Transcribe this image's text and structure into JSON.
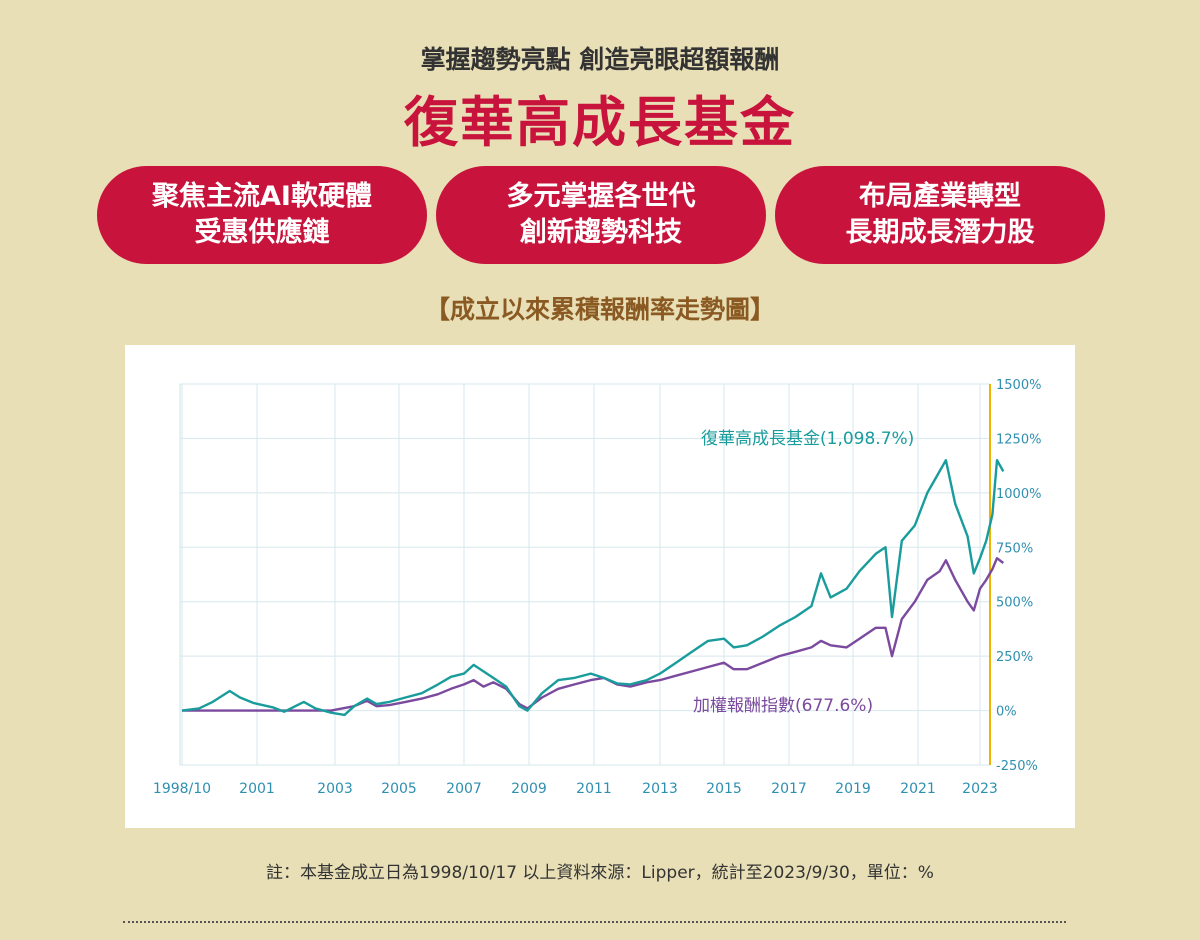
{
  "header": {
    "subtitle": "掌握趨勢亮點 創造亮眼超額報酬",
    "title": "復華高成長基金"
  },
  "features": [
    {
      "line1": "聚焦主流AI軟硬體",
      "line2": "受惠供應鏈"
    },
    {
      "line1": "多元掌握各世代",
      "line2": "創新趨勢科技"
    },
    {
      "line1": "布局產業轉型",
      "line2": "長期成長潛力股"
    }
  ],
  "section_title": "【成立以來累積報酬率走勢圖】",
  "footnote": "註：本基金成立日為1998/10/17 以上資料來源：Lipper，統計至2023/9/30，單位：%",
  "colors": {
    "brand_red": "#c8143c",
    "background": "#e8dfb6",
    "fund_series": "#1a9c9c",
    "index_series": "#7b4a9e",
    "axis_accent": "#f0b400"
  },
  "chart_data": {
    "type": "line",
    "x_tick_labels": [
      "1998/10",
      "2001",
      "2003",
      "2005",
      "2007",
      "2009",
      "2011",
      "2013",
      "2015",
      "2017",
      "2019",
      "2021",
      "2023"
    ],
    "y_tick_labels": [
      "1500%",
      "1250%",
      "1000%",
      "750%",
      "500%",
      "250%",
      "0%",
      "-250%"
    ],
    "ylim": [
      -250,
      1500
    ],
    "xlim": [
      1998.8,
      2023.75
    ],
    "grid": true,
    "y_axis_side": "right",
    "series": [
      {
        "name": "復華高成長基金",
        "label": "復華高成長基金(1,098.7%)",
        "color": "#1a9c9c",
        "x": [
          1998.8,
          1999.3,
          1999.7,
          2000.2,
          2000.5,
          2000.9,
          2001.4,
          2001.7,
          2002.2,
          2002.5,
          2002.9,
          2003.3,
          2003.6,
          2004.0,
          2004.3,
          2004.7,
          2005.2,
          2005.7,
          2006.2,
          2006.6,
          2007.0,
          2007.3,
          2007.6,
          2007.9,
          2008.3,
          2008.7,
          2008.95,
          2009.4,
          2009.9,
          2010.4,
          2010.9,
          2011.3,
          2011.7,
          2012.1,
          2012.6,
          2013.0,
          2013.5,
          2014.0,
          2014.5,
          2015.0,
          2015.3,
          2015.7,
          2016.2,
          2016.7,
          2017.2,
          2017.7,
          2018.0,
          2018.3,
          2018.8,
          2019.2,
          2019.7,
          2020.0,
          2020.2,
          2020.5,
          2020.9,
          2021.3,
          2021.7,
          2021.9,
          2022.2,
          2022.6,
          2022.8,
          2023.0,
          2023.2,
          2023.4,
          2023.55,
          2023.75
        ],
        "y": [
          0,
          10,
          40,
          90,
          60,
          35,
          15,
          -5,
          40,
          10,
          -10,
          -20,
          20,
          55,
          30,
          40,
          60,
          80,
          120,
          155,
          170,
          210,
          180,
          150,
          110,
          20,
          0,
          80,
          140,
          150,
          170,
          150,
          125,
          120,
          140,
          170,
          220,
          270,
          320,
          330,
          290,
          300,
          340,
          390,
          430,
          480,
          630,
          520,
          560,
          640,
          720,
          750,
          430,
          780,
          850,
          1000,
          1100,
          1150,
          950,
          800,
          630,
          700,
          780,
          900,
          1150,
          1098.7
        ]
      },
      {
        "name": "加權報酬指數",
        "label": "加權報酬指數(677.6%)",
        "color": "#7b4a9e",
        "x": [
          1998.8,
          2000.0,
          2001.0,
          2002.0,
          2002.9,
          2003.6,
          2004.0,
          2004.3,
          2004.7,
          2005.2,
          2005.7,
          2006.2,
          2006.6,
          2007.0,
          2007.3,
          2007.6,
          2007.9,
          2008.3,
          2008.7,
          2008.95,
          2009.4,
          2009.9,
          2010.4,
          2010.9,
          2011.3,
          2011.7,
          2012.1,
          2012.6,
          2013.0,
          2013.5,
          2014.0,
          2014.5,
          2015.0,
          2015.3,
          2015.7,
          2016.2,
          2016.7,
          2017.2,
          2017.7,
          2018.0,
          2018.3,
          2018.8,
          2019.2,
          2019.7,
          2020.0,
          2020.2,
          2020.5,
          2020.9,
          2021.3,
          2021.7,
          2021.9,
          2022.2,
          2022.6,
          2022.8,
          2023.0,
          2023.2,
          2023.4,
          2023.55,
          2023.75
        ],
        "y": [
          0,
          0,
          0,
          0,
          0,
          20,
          45,
          20,
          25,
          40,
          55,
          75,
          100,
          120,
          140,
          110,
          130,
          100,
          30,
          10,
          60,
          100,
          120,
          140,
          150,
          120,
          110,
          130,
          140,
          160,
          180,
          200,
          220,
          190,
          190,
          220,
          250,
          270,
          290,
          320,
          300,
          290,
          330,
          380,
          380,
          250,
          420,
          500,
          600,
          640,
          690,
          600,
          500,
          460,
          560,
          600,
          650,
          700,
          677.6
        ]
      }
    ]
  }
}
